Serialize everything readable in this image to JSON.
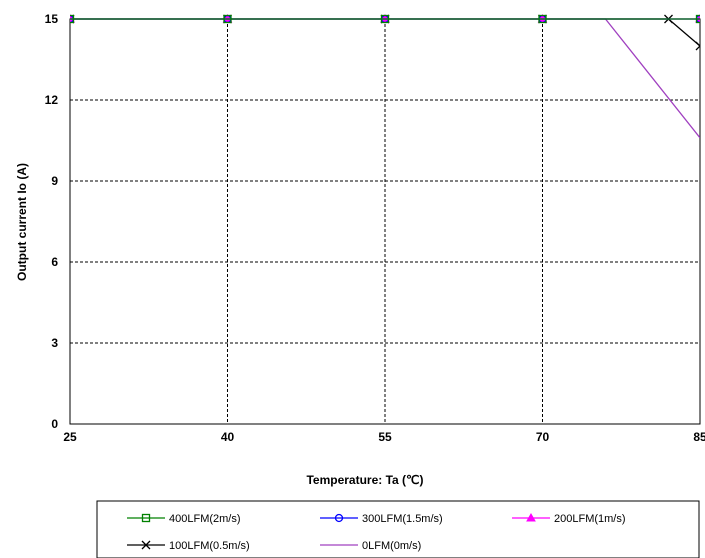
{
  "chart_data": {
    "type": "line",
    "xlabel": "Temperature: Ta (℃)",
    "ylabel": "Output current  Io (A)",
    "x_ticks": [
      25,
      40,
      55,
      70,
      85
    ],
    "y_ticks": [
      0,
      3,
      6,
      9,
      12,
      15
    ],
    "xlim": [
      25,
      85
    ],
    "ylim": [
      0,
      15
    ],
    "grid": true,
    "legend_position": "bottom",
    "series": [
      {
        "name": "400LFM(2m/s)",
        "color": "#008000",
        "marker": "square",
        "points": [
          [
            25,
            15
          ],
          [
            40,
            15
          ],
          [
            55,
            15
          ],
          [
            70,
            15
          ],
          [
            85,
            15
          ]
        ]
      },
      {
        "name": "300LFM(1.5m/s)",
        "color": "#0000ff",
        "marker": "circle",
        "points": [
          [
            25,
            15
          ],
          [
            40,
            15
          ],
          [
            55,
            15
          ],
          [
            70,
            15
          ],
          [
            85,
            15
          ]
        ]
      },
      {
        "name": "200LFM(1m/s)",
        "color": "#ff00ff",
        "marker": "triangle",
        "points": [
          [
            25,
            15
          ],
          [
            40,
            15
          ],
          [
            55,
            15
          ],
          [
            70,
            15
          ],
          [
            85,
            15
          ]
        ]
      },
      {
        "name": "100LFM(0.5m/s)",
        "color": "#000000",
        "marker": "x",
        "points": [
          [
            25,
            15
          ],
          [
            40,
            15
          ],
          [
            55,
            15
          ],
          [
            70,
            15
          ],
          [
            82,
            15
          ],
          [
            85,
            14
          ]
        ]
      },
      {
        "name": "0LFM(0m/s)",
        "color": "#a040c0",
        "marker": "none",
        "points": [
          [
            25,
            15
          ],
          [
            40,
            15
          ],
          [
            55,
            15
          ],
          [
            70,
            15
          ],
          [
            76,
            15
          ],
          [
            85,
            10.6
          ]
        ]
      }
    ]
  }
}
